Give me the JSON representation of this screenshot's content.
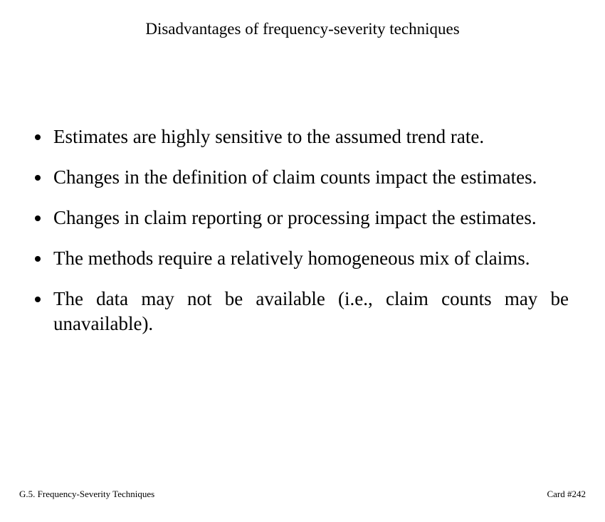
{
  "title": "Disadvantages of frequency-severity techniques",
  "bullets": [
    "Estimates are highly sensitive to the assumed trend rate.",
    "Changes in the definition of claim counts impact the estimates.",
    "Changes in claim reporting or processing impact the estimates.",
    "The methods require a relatively homogeneous mix of claims.",
    "The data may not be available (i.e., claim counts may be unavailable)."
  ],
  "footer": {
    "section": "G.5. Frequency-Severity Techniques",
    "card": "Card #242"
  }
}
